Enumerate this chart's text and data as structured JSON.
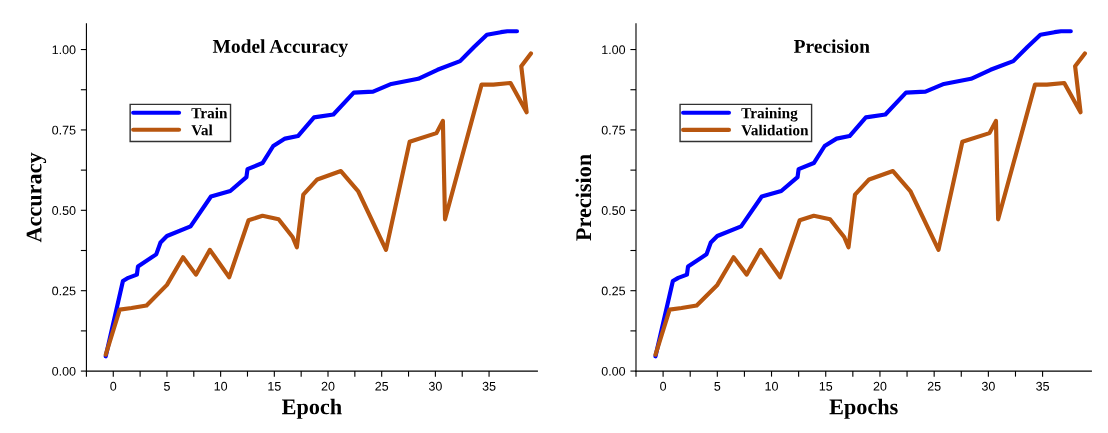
{
  "chart_data": [
    {
      "type": "line",
      "title": "Model Accuracy",
      "xlabel": "Epoch",
      "ylabel": "Accuracy",
      "xlim": [
        -2.5,
        39.5
      ],
      "ylim": [
        0,
        1.08
      ],
      "xticks": [
        {
          "value": -2.5,
          "label": null
        },
        0,
        {
          "value": 2.5,
          "label": null
        },
        5,
        {
          "value": 7.5,
          "label": null
        },
        10,
        {
          "value": 12.5,
          "label": null
        },
        15,
        {
          "value": 17.5,
          "label": null
        },
        20,
        {
          "value": 22.5,
          "label": null
        },
        25,
        {
          "value": 27.5,
          "label": null
        },
        30,
        {
          "value": 32.5,
          "label": null
        },
        35
      ],
      "yticks": [
        {
          "value": 0,
          "label": "0.00"
        },
        {
          "value": 0.125,
          "label": null
        },
        {
          "value": 0.25,
          "label": "0.25"
        },
        {
          "value": 0.375,
          "label": null
        },
        {
          "value": 0.5,
          "label": "0.50"
        },
        {
          "value": 0.625,
          "label": null
        },
        {
          "value": 0.75,
          "label": "0.75"
        },
        {
          "value": 0.875,
          "label": null
        },
        {
          "value": 1.0,
          "label": "1.00"
        }
      ],
      "legend": "top left",
      "grid": false,
      "series": [
        {
          "name": "Train",
          "color": "#0000ff",
          "x": [
            -0.7,
            0.9,
            1.4,
            2.2,
            2.3,
            4.0,
            4.4,
            5.0,
            7.2,
            9.1,
            10.9,
            12.4,
            12.5,
            13.9,
            14.9,
            16.0,
            17.2,
            18.7,
            20.5,
            22.4,
            24.2,
            25.9,
            28.4,
            30.2,
            32.3,
            33.6,
            34.8,
            36.1,
            36.7,
            37.6
          ],
          "values": [
            0.046,
            0.28,
            0.29,
            0.3,
            0.325,
            0.363,
            0.4,
            0.42,
            0.45,
            0.543,
            0.56,
            0.603,
            0.628,
            0.647,
            0.7,
            0.723,
            0.731,
            0.789,
            0.798,
            0.866,
            0.869,
            0.893,
            0.909,
            0.937,
            0.964,
            1.008,
            1.046,
            1.054,
            1.057,
            1.057
          ]
        },
        {
          "name": "Val",
          "color": "#b8560f",
          "x": [
            -0.7,
            0.6,
            1.7,
            3.1,
            5.0,
            6.5,
            7.7,
            9.0,
            10.8,
            12.6,
            13.9,
            15.4,
            16.7,
            17.1,
            17.7,
            19.0,
            21.2,
            22.8,
            25.4,
            27.6,
            30.1,
            30.7,
            30.8,
            30.9,
            34.3,
            35.4,
            37.0,
            38.5,
            38.0,
            38.9
          ],
          "values": [
            0.051,
            0.191,
            0.196,
            0.204,
            0.268,
            0.354,
            0.3,
            0.377,
            0.292,
            0.469,
            0.483,
            0.472,
            0.417,
            0.385,
            0.549,
            0.596,
            0.622,
            0.56,
            0.377,
            0.713,
            0.74,
            0.778,
            0.62,
            0.472,
            0.891,
            0.891,
            0.896,
            0.805,
            0.948,
            0.988
          ]
        }
      ]
    },
    {
      "type": "line",
      "title": "Precision",
      "xlabel": "Epochs",
      "ylabel": "Precision",
      "xlim": [
        -2.5,
        39.5
      ],
      "ylim": [
        0,
        1.08
      ],
      "xticks": [
        {
          "value": -2.5,
          "label": null
        },
        0,
        {
          "value": 2.5,
          "label": null
        },
        5,
        {
          "value": 7.5,
          "label": null
        },
        10,
        {
          "value": 12.5,
          "label": null
        },
        15,
        {
          "value": 17.5,
          "label": null
        },
        20,
        {
          "value": 22.5,
          "label": null
        },
        25,
        {
          "value": 27.5,
          "label": null
        },
        30,
        {
          "value": 32.5,
          "label": null
        },
        35
      ],
      "yticks": [
        {
          "value": 0,
          "label": "0.00"
        },
        {
          "value": 0.125,
          "label": null
        },
        {
          "value": 0.25,
          "label": "0.25"
        },
        {
          "value": 0.375,
          "label": null
        },
        {
          "value": 0.5,
          "label": "0.50"
        },
        {
          "value": 0.625,
          "label": null
        },
        {
          "value": 0.75,
          "label": "0.75"
        },
        {
          "value": 0.875,
          "label": null
        },
        {
          "value": 1.0,
          "label": "1.00"
        }
      ],
      "legend": "top left",
      "grid": false,
      "series": [
        {
          "name": "Training",
          "color": "#0000ff",
          "x": [
            -0.7,
            0.9,
            1.4,
            2.2,
            2.3,
            4.0,
            4.4,
            5.0,
            7.2,
            9.1,
            10.9,
            12.4,
            12.5,
            13.9,
            14.9,
            16.0,
            17.2,
            18.7,
            20.5,
            22.4,
            24.2,
            25.9,
            28.4,
            30.2,
            32.3,
            33.6,
            34.8,
            36.1,
            36.7,
            37.6
          ],
          "values": [
            0.046,
            0.28,
            0.29,
            0.3,
            0.325,
            0.363,
            0.4,
            0.42,
            0.45,
            0.543,
            0.56,
            0.603,
            0.628,
            0.647,
            0.7,
            0.723,
            0.731,
            0.789,
            0.798,
            0.866,
            0.869,
            0.893,
            0.909,
            0.937,
            0.964,
            1.008,
            1.046,
            1.054,
            1.057,
            1.057
          ]
        },
        {
          "name": "Validation",
          "color": "#b8560f",
          "x": [
            -0.7,
            0.6,
            1.7,
            3.1,
            5.0,
            6.5,
            7.7,
            9.0,
            10.8,
            12.6,
            13.9,
            15.4,
            16.7,
            17.1,
            17.7,
            19.0,
            21.2,
            22.8,
            25.4,
            27.6,
            30.1,
            30.7,
            30.8,
            30.9,
            34.3,
            35.4,
            37.0,
            38.5,
            38.0,
            38.9
          ],
          "values": [
            0.051,
            0.191,
            0.196,
            0.204,
            0.268,
            0.354,
            0.3,
            0.377,
            0.292,
            0.469,
            0.483,
            0.472,
            0.417,
            0.385,
            0.549,
            0.596,
            0.622,
            0.56,
            0.377,
            0.713,
            0.74,
            0.778,
            0.62,
            0.472,
            0.891,
            0.891,
            0.896,
            0.805,
            0.948,
            0.988
          ]
        }
      ]
    }
  ]
}
